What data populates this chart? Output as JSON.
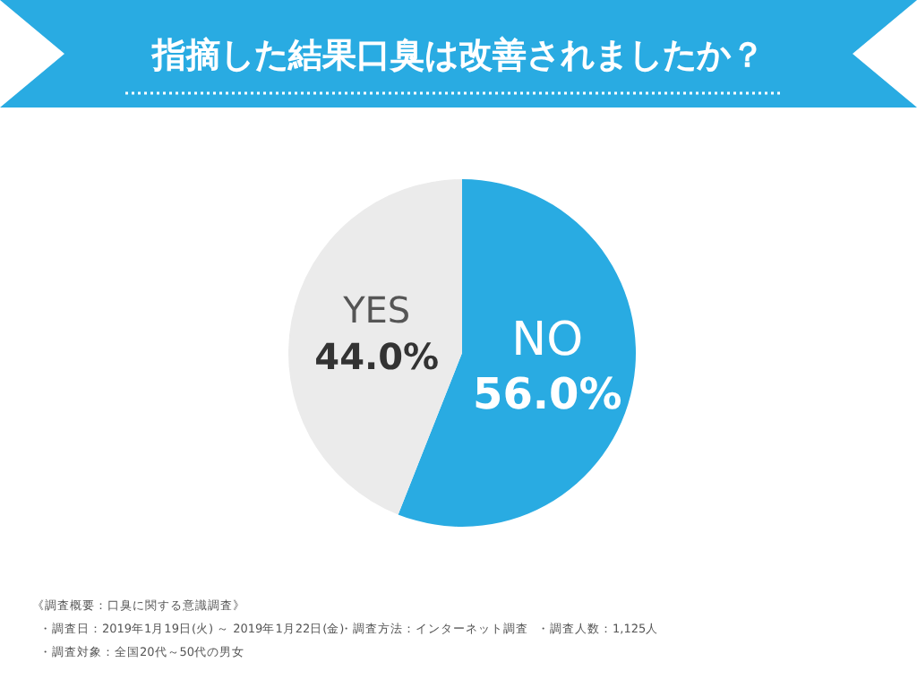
{
  "chart_data": {
    "type": "pie",
    "title": "指摘した結果口臭は改善されましたか？",
    "categories": [
      "NO",
      "YES"
    ],
    "values": [
      56.0,
      44.0
    ],
    "colors": [
      "#29abe2",
      "#ebebeb"
    ],
    "value_labels": [
      "56.0%",
      "44.0%"
    ],
    "annotations": [
      "《調査概要：口臭に関する意識調査》",
      "・調査日：2019年1月19日(火) ～ 2019年1月22日(金)",
      "・調査方法：インターネット調査",
      "・調査人数：1,125人",
      "・調査対象：全国20代～50代の男女"
    ],
    "legend": false
  }
}
